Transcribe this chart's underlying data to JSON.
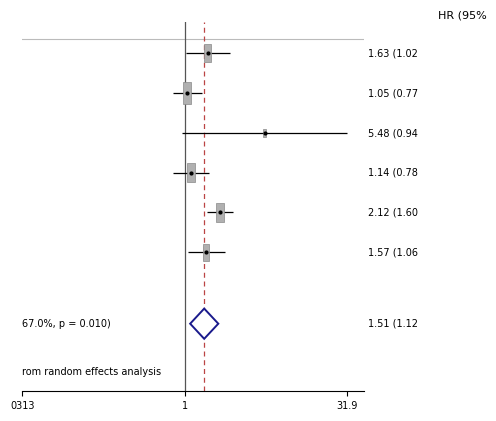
{
  "title_right": "HR (95%",
  "studies": [
    {
      "hr": 1.63,
      "ci_low": 1.02,
      "ci_high": 2.6,
      "label": "1.63 (1.02",
      "weight": 0.18
    },
    {
      "hr": 1.05,
      "ci_low": 0.77,
      "ci_high": 1.43,
      "label": "1.05 (0.77",
      "weight": 0.28
    },
    {
      "hr": 5.48,
      "ci_low": 0.94,
      "ci_high": 31.9,
      "label": "5.48 (0.94",
      "weight": 0.04
    },
    {
      "hr": 1.14,
      "ci_low": 0.78,
      "ci_high": 1.67,
      "label": "1.14 (0.78",
      "weight": 0.22
    },
    {
      "hr": 2.12,
      "ci_low": 1.6,
      "ci_high": 2.81,
      "label": "2.12 (1.60",
      "weight": 0.2
    },
    {
      "hr": 1.57,
      "ci_low": 1.06,
      "ci_high": 2.33,
      "label": "1.57 (1.06",
      "weight": 0.16
    }
  ],
  "pooled": {
    "hr": 1.51,
    "ci_low": 1.12,
    "ci_high": 2.04,
    "label": "1.51 (1.12"
  },
  "heterogeneity_text": "67.0%, p = 0.010)",
  "footnote": "rom random effects analysis",
  "x_tick_labels": [
    "0313",
    "1",
    "31.9"
  ],
  "x_ticks": [
    0.0313,
    1.0,
    31.9
  ],
  "ref_line": 1.0,
  "dashed_line_x": 1.51,
  "x_min": 0.0313,
  "x_max": 45.0,
  "background_color": "#ffffff",
  "box_color": "#b0b0b0",
  "diamond_edge_color": "#1a1a8c",
  "line_color": "#000000",
  "dashed_color": "#bb4444",
  "separator_color": "#bbbbbb",
  "ref_line_color": "#555555"
}
